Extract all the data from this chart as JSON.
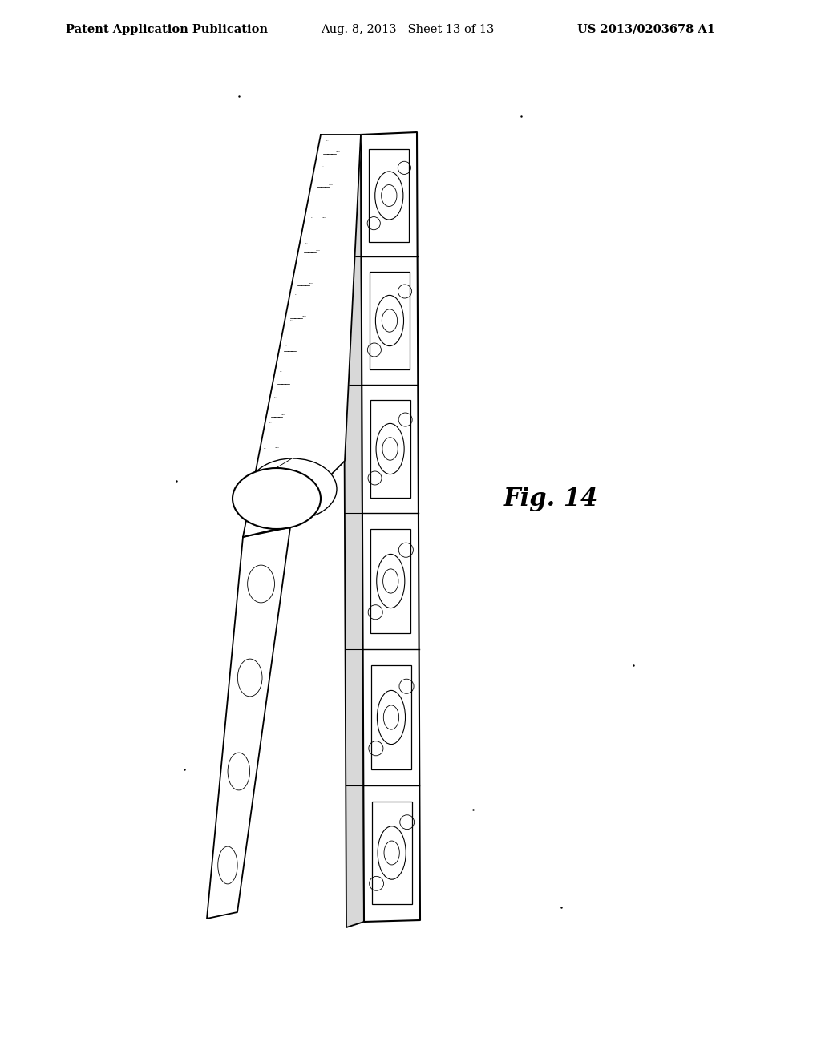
{
  "bg_color": "#ffffff",
  "header_left": "Patent Application Publication",
  "header_mid": "Aug. 8, 2013   Sheet 13 of 13",
  "header_right": "US 2013/0203678 A1",
  "fig_label": "Fig. 14",
  "header_fontsize": 10.5
}
